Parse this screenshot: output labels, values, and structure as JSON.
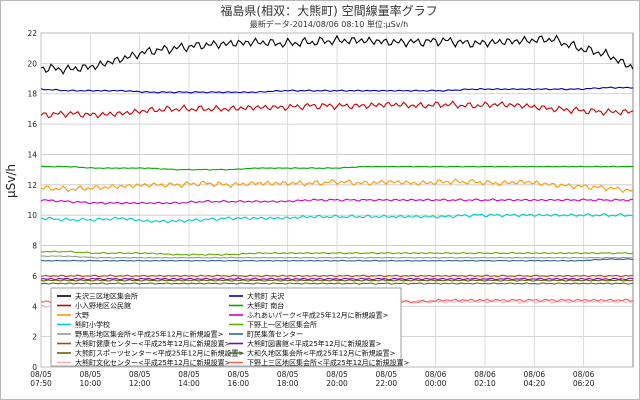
{
  "chart_data": {
    "type": "line",
    "title": "福島県(相双：大熊町) 空間線量率グラフ",
    "subtitle": "最新データ-2014/08/06 08:10 単位:μSv/h",
    "ylabel": "μSv/h",
    "xlabel": "",
    "ylim": [
      0,
      22
    ],
    "yticks": [
      0,
      2,
      4,
      6,
      8,
      10,
      12,
      14,
      16,
      18,
      20,
      22
    ],
    "grid": true,
    "legend_position": "bottom-left",
    "x_ticks": [
      {
        "date": "08/05",
        "time": "07:50"
      },
      {
        "date": "08/05",
        "time": "10:00"
      },
      {
        "date": "08/05",
        "time": "12:00"
      },
      {
        "date": "08/05",
        "time": "14:00"
      },
      {
        "date": "08/05",
        "time": "16:00"
      },
      {
        "date": "08/05",
        "time": "18:00"
      },
      {
        "date": "08/05",
        "time": "20:00"
      },
      {
        "date": "08/05",
        "time": "22:00"
      },
      {
        "date": "08/06",
        "time": "00:00"
      },
      {
        "date": "08/06",
        "time": "02:10"
      },
      {
        "date": "08/06",
        "time": "04:20"
      },
      {
        "date": "08/06",
        "time": "06:20"
      }
    ],
    "series": [
      {
        "name": "夫沢三区地区集会所",
        "color": "#000000",
        "noise": 0.35,
        "values": [
          19.7,
          19.6,
          19.8,
          20.3,
          20.8,
          21.0,
          21.2,
          21.3,
          21.4,
          21.3,
          21.4,
          21.5,
          21.5,
          21.4,
          21.4,
          21.5,
          21.3,
          21.4,
          21.5,
          21.6,
          21.0,
          20.6,
          19.7
        ]
      },
      {
        "name": "大熊町 夫沢",
        "color": "#0000bb",
        "noise": 0.05,
        "values": [
          18.3,
          18.2,
          18.2,
          18.2,
          18.1,
          18.1,
          18.1,
          18.1,
          18.1,
          18.2,
          18.2,
          18.2,
          18.2,
          18.2,
          18.2,
          18.2,
          18.3,
          18.3,
          18.3,
          18.3,
          18.3,
          18.4,
          18.4
        ]
      },
      {
        "name": "小入野地区公民館",
        "color": "#cc0000",
        "noise": 0.25,
        "values": [
          16.6,
          16.7,
          16.6,
          16.7,
          16.9,
          17.0,
          17.0,
          17.0,
          17.1,
          17.1,
          17.2,
          17.2,
          17.2,
          17.3,
          17.2,
          17.3,
          17.2,
          17.3,
          17.2,
          17.0,
          16.9,
          16.8,
          16.8
        ]
      },
      {
        "name": "大熊町 南台",
        "color": "#00aa00",
        "noise": 0.03,
        "values": [
          13.2,
          13.2,
          13.1,
          13.1,
          13.1,
          13.0,
          13.0,
          13.0,
          13.1,
          13.1,
          13.1,
          13.1,
          13.2,
          13.2,
          13.2,
          13.2,
          13.2,
          13.2,
          13.2,
          13.2,
          13.2,
          13.2,
          13.2
        ]
      },
      {
        "name": "大野",
        "color": "#ff9900",
        "noise": 0.2,
        "values": [
          11.8,
          11.7,
          11.8,
          11.9,
          12.0,
          12.0,
          12.1,
          12.0,
          12.1,
          12.1,
          12.1,
          12.2,
          12.1,
          12.2,
          12.1,
          12.2,
          12.2,
          12.1,
          12.2,
          12.0,
          11.9,
          11.8,
          11.6
        ]
      },
      {
        "name": "ふれあいパーク<平成25年12月に新規設置>",
        "color": "#cc00cc",
        "noise": 0.08,
        "values": [
          11.0,
          10.9,
          10.8,
          10.8,
          10.8,
          10.8,
          10.9,
          10.9,
          10.9,
          10.9,
          11.0,
          11.0,
          11.0,
          11.0,
          11.0,
          11.0,
          11.0,
          11.0,
          11.0,
          11.0,
          11.0,
          11.0,
          11.0
        ]
      },
      {
        "name": "熊町小学校",
        "color": "#00cccc",
        "noise": 0.12,
        "values": [
          9.8,
          9.7,
          9.7,
          9.8,
          9.6,
          9.6,
          9.7,
          9.8,
          9.8,
          9.8,
          9.9,
          9.9,
          9.9,
          9.9,
          9.9,
          9.9,
          10.0,
          10.0,
          10.0,
          10.0,
          10.0,
          10.0,
          10.0
        ]
      },
      {
        "name": "下野上一区地区集会所",
        "color": "#66aa00",
        "noise": 0.05,
        "values": [
          7.6,
          7.6,
          7.5,
          7.5,
          7.5,
          7.4,
          7.4,
          7.4,
          7.5,
          7.5,
          7.5,
          7.5,
          7.5,
          7.5,
          7.5,
          7.5,
          7.5,
          7.5,
          7.5,
          7.5,
          7.5,
          7.5,
          7.5
        ]
      },
      {
        "name": "野馬形地区集会所<平成25年12月に新規設置>",
        "color": "#999999",
        "noise": 0.03,
        "values": [
          7.3,
          7.3,
          7.2,
          7.2,
          7.2,
          7.2,
          7.2,
          7.2,
          7.2,
          7.2,
          7.2,
          7.2,
          7.2,
          7.2,
          7.2,
          7.2,
          7.2,
          7.2,
          7.2,
          7.2,
          7.2,
          7.2,
          7.2
        ]
      },
      {
        "name": "町民集落センター",
        "color": "#336699",
        "noise": 0.03,
        "values": [
          7.0,
          7.0,
          7.0,
          7.0,
          7.0,
          7.0,
          7.0,
          7.0,
          7.0,
          7.0,
          7.0,
          7.0,
          7.0,
          7.0,
          7.0,
          7.0,
          7.0,
          7.0,
          7.0,
          7.0,
          7.0,
          7.1,
          7.1
        ]
      },
      {
        "name": "大熊町健康センター<平成25年12月に新規設置>",
        "color": "#bb4400",
        "noise": 0.06,
        "values": [
          6.0,
          6.0,
          6.0,
          6.0,
          6.0,
          6.0,
          6.0,
          6.0,
          6.0,
          6.0,
          6.0,
          6.0,
          6.0,
          6.0,
          6.0,
          6.0,
          6.0,
          6.0,
          6.0,
          6.0,
          6.0,
          6.0,
          6.0
        ]
      },
      {
        "name": "大熊町図書館<平成25年12月に新規設置>",
        "color": "#8800bb",
        "noise": 0.06,
        "values": [
          5.8,
          5.8,
          5.8,
          5.8,
          5.8,
          5.8,
          5.8,
          5.8,
          5.8,
          5.8,
          5.8,
          5.8,
          5.8,
          5.8,
          5.8,
          5.8,
          5.8,
          5.8,
          5.8,
          5.8,
          5.8,
          5.8,
          5.8
        ]
      },
      {
        "name": "大熊町スポーツセンター<平成25年12月に新規設置>",
        "color": "#666600",
        "noise": 0.05,
        "values": [
          5.7,
          5.7,
          5.7,
          5.7,
          5.7,
          5.7,
          5.7,
          5.7,
          5.7,
          5.7,
          5.7,
          5.7,
          5.7,
          5.7,
          5.7,
          5.7,
          5.7,
          5.7,
          5.7,
          5.7,
          5.7,
          5.7,
          5.7
        ]
      },
      {
        "name": "大和久地区集会所<平成25年12月に新規設置>",
        "color": "#447744",
        "noise": 0.05,
        "values": [
          5.5,
          5.5,
          5.5,
          5.5,
          5.5,
          5.5,
          5.5,
          5.5,
          5.5,
          5.5,
          5.5,
          5.5,
          5.5,
          5.5,
          5.5,
          5.5,
          5.5,
          5.5,
          5.5,
          5.5,
          5.5,
          5.5,
          5.5
        ]
      },
      {
        "name": "大熊町文化センター<平成25年12月に新規設置>",
        "color": "#ffaacc",
        "noise": 0.12,
        "values": [
          4.0,
          4.0,
          4.0,
          4.1,
          4.1,
          4.1,
          4.2,
          4.2,
          4.2,
          4.2,
          4.2,
          4.2,
          4.3,
          4.3,
          4.3,
          4.3,
          4.3,
          4.3,
          4.3,
          4.3,
          4.3,
          4.3,
          4.3
        ]
      },
      {
        "name": "下野上三区地区集会所<平成25年12月に新規設置>",
        "color": "#ee6655",
        "noise": 0.1,
        "values": [
          4.3,
          4.3,
          4.3,
          4.3,
          4.3,
          4.3,
          4.3,
          4.3,
          4.3,
          4.3,
          4.3,
          4.3,
          4.3,
          4.3,
          4.3,
          4.4,
          4.4,
          4.4,
          4.4,
          4.4,
          4.4,
          4.4,
          4.4
        ]
      }
    ]
  }
}
